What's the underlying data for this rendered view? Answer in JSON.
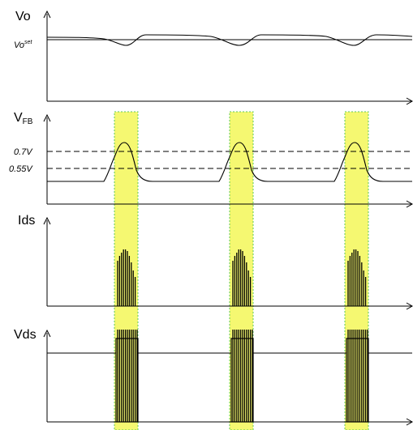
{
  "panels": {
    "vo": {
      "label": "Vo",
      "setpoint_label": "Vo",
      "setpoint_sup": "set"
    },
    "vfb": {
      "label_main": "V",
      "label_sub": "FB",
      "level_high": "0.7V",
      "level_low": "0.55V"
    },
    "ids": {
      "label": "Ids"
    },
    "vds": {
      "label": "Vds"
    }
  },
  "colors": {
    "highlight_band": "#f2f542",
    "band_border": "#5cc85c",
    "line": "#000000"
  },
  "burst_count": 3
}
